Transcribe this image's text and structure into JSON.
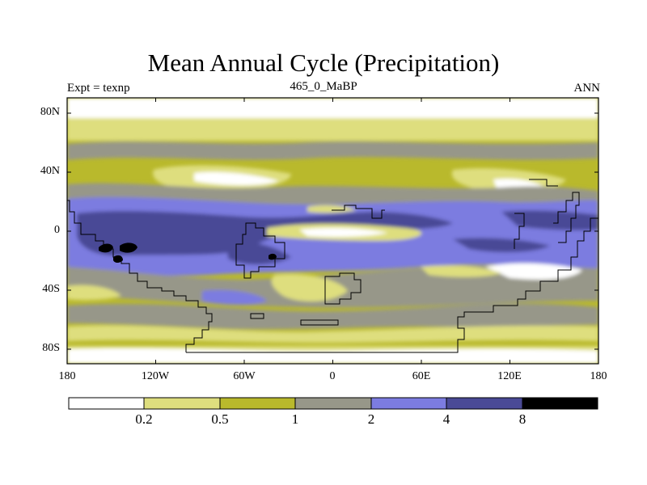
{
  "title": "Mean Annual Cycle (Precipitation)",
  "subtitle_left": "Expt = texnp",
  "subtitle_center": "465_0_MaBP",
  "subtitle_right": "ANN",
  "lat_ticks": [
    "80N",
    "40N",
    "0",
    "40S",
    "80S"
  ],
  "lon_ticks": [
    "180",
    "120W",
    "60W",
    "0",
    "60E",
    "120E",
    "180"
  ],
  "colorbar": {
    "labels": [
      "0.2",
      "0.5",
      "1",
      "2",
      "4",
      "8"
    ],
    "colors": [
      "#ffffff",
      "#dede7e",
      "#b9b92c",
      "#979789",
      "#7c7ce0",
      "#4a4a96",
      "#000000"
    ]
  },
  "map_colors": {
    "lt02": "#ffffff",
    "r02_05": "#dede7e",
    "r05_1": "#b9b92c",
    "r1_2": "#979789",
    "r2_4": "#7c7ce0",
    "r4_8": "#4a4a96",
    "gt8": "#000000"
  }
}
